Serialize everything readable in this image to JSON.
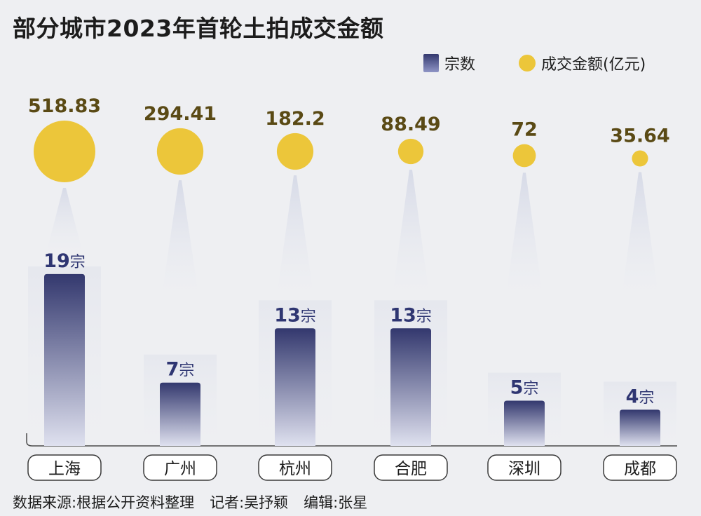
{
  "title": "部分城市2023年首轮土拍成交金额",
  "legend": {
    "count_label": "宗数",
    "amount_label": "成交金额(亿元)"
  },
  "footer": {
    "source": "数据来源:根据公开资料整理",
    "reporter": "记者:吴抒颖",
    "editor": "编辑:张星"
  },
  "colors": {
    "bar_top": "#33386e",
    "bar_bottom": "#dfe1ef",
    "bubble": "#ecc63a",
    "amount_text": "#5a4a15",
    "count_text": "#2f3672"
  },
  "chart_data": {
    "type": "bar",
    "categories": [
      "上海",
      "广州",
      "杭州",
      "合肥",
      "深圳",
      "成都"
    ],
    "series": [
      {
        "name": "宗数",
        "values": [
          19,
          7,
          13,
          13,
          5,
          4
        ],
        "unit_label": "宗"
      },
      {
        "name": "成交金额(亿元)",
        "values": [
          518.83,
          294.41,
          182.2,
          88.49,
          72,
          35.64
        ],
        "labels": [
          "518.83",
          "294.41",
          "182.2",
          "88.49",
          "72",
          "35.64"
        ]
      }
    ]
  }
}
